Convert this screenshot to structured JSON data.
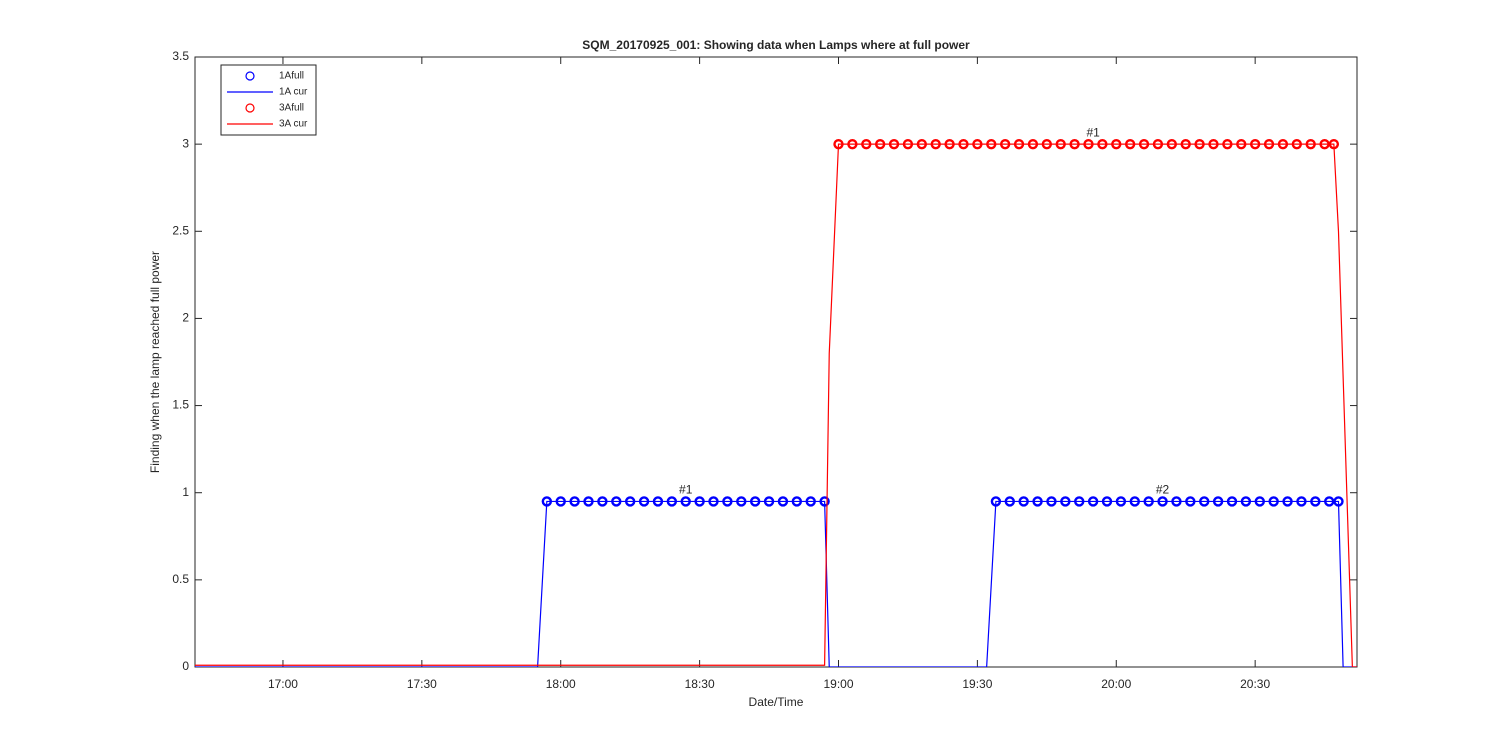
{
  "chart_data": {
    "type": "line",
    "title": "SQM_20170925_001: Showing data when Lamps where at full power",
    "x_label": "Date/Time",
    "y_label": "Finding when the lamp reached full power",
    "xlim": [
      "16:41",
      "20:52"
    ],
    "xticks": [
      "17:00",
      "17:30",
      "18:00",
      "18:30",
      "19:00",
      "19:30",
      "20:00",
      "20:30"
    ],
    "ylim": [
      0,
      3.5
    ],
    "yticks": [
      0,
      0.5,
      1,
      1.5,
      2,
      2.5,
      3,
      3.5
    ],
    "grid": false,
    "legend": "northwest",
    "series": [
      {
        "name": "1Afull",
        "color": "#0000ff",
        "marker": "circle",
        "x": [
          "17:57",
          "18:00",
          "18:03",
          "18:06",
          "18:09",
          "18:12",
          "18:15",
          "18:18",
          "18:21",
          "18:24",
          "18:27",
          "18:30",
          "18:33",
          "18:36",
          "18:39",
          "18:42",
          "18:45",
          "18:48",
          "18:51",
          "18:54",
          "18:57",
          "19:34",
          "19:37",
          "19:40",
          "19:43",
          "19:46",
          "19:49",
          "19:52",
          "19:55",
          "19:58",
          "20:01",
          "20:04",
          "20:07",
          "20:10",
          "20:13",
          "20:16",
          "20:19",
          "20:22",
          "20:25",
          "20:28",
          "20:31",
          "20:34",
          "20:37",
          "20:40",
          "20:43",
          "20:46",
          "20:48"
        ],
        "values": [
          0.95,
          0.95,
          0.95,
          0.95,
          0.95,
          0.95,
          0.95,
          0.95,
          0.95,
          0.95,
          0.95,
          0.95,
          0.95,
          0.95,
          0.95,
          0.95,
          0.95,
          0.95,
          0.95,
          0.95,
          0.95,
          0.95,
          0.95,
          0.95,
          0.95,
          0.95,
          0.95,
          0.95,
          0.95,
          0.95,
          0.95,
          0.95,
          0.95,
          0.95,
          0.95,
          0.95,
          0.95,
          0.95,
          0.95,
          0.95,
          0.95,
          0.95,
          0.95,
          0.95,
          0.95,
          0.95,
          0.95
        ]
      },
      {
        "name": "1A cur",
        "color": "#0000ff",
        "marker": "none",
        "x": [
          "16:41",
          "17:55",
          "17:57",
          "18:57",
          "18:58",
          "19:32",
          "19:34",
          "20:48",
          "20:49",
          "20:52"
        ],
        "values": [
          0,
          0,
          0.95,
          0.95,
          0,
          0,
          0.95,
          0.95,
          0,
          0
        ]
      },
      {
        "name": "3Afull",
        "color": "#ff0000",
        "marker": "circle",
        "x": [
          "19:00",
          "19:03",
          "19:06",
          "19:09",
          "19:12",
          "19:15",
          "19:18",
          "19:21",
          "19:24",
          "19:27",
          "19:30",
          "19:33",
          "19:36",
          "19:39",
          "19:42",
          "19:45",
          "19:48",
          "19:51",
          "19:54",
          "19:57",
          "20:00",
          "20:03",
          "20:06",
          "20:09",
          "20:12",
          "20:15",
          "20:18",
          "20:21",
          "20:24",
          "20:27",
          "20:30",
          "20:33",
          "20:36",
          "20:39",
          "20:42",
          "20:45",
          "20:47"
        ],
        "values": [
          3,
          3,
          3,
          3,
          3,
          3,
          3,
          3,
          3,
          3,
          3,
          3,
          3,
          3,
          3,
          3,
          3,
          3,
          3,
          3,
          3,
          3,
          3,
          3,
          3,
          3,
          3,
          3,
          3,
          3,
          3,
          3,
          3,
          3,
          3,
          3,
          3
        ]
      },
      {
        "name": "3A cur",
        "color": "#ff0000",
        "marker": "none",
        "x": [
          "16:41",
          "18:57",
          "18:58",
          "19:00",
          "20:47",
          "20:48",
          "20:51",
          "20:52"
        ],
        "values": [
          0.01,
          0.01,
          1.8,
          3,
          3,
          2.5,
          0,
          0
        ]
      }
    ],
    "annotations": [
      {
        "text": "#1",
        "x": "18:27",
        "y": 0.99
      },
      {
        "text": "#2",
        "x": "20:10",
        "y": 0.99
      },
      {
        "text": "#1",
        "x": "19:55",
        "y": 3.04
      }
    ]
  }
}
